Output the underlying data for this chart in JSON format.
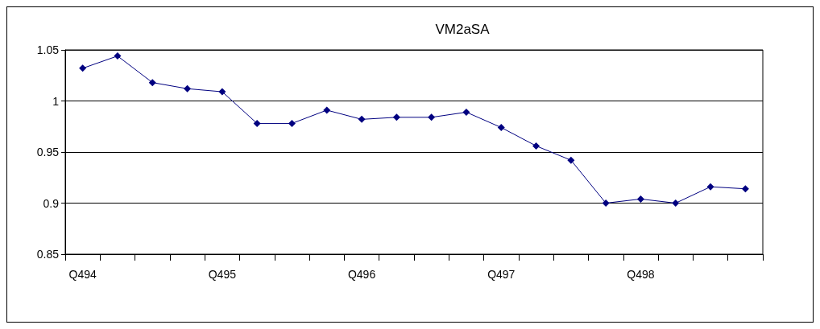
{
  "chart_data": {
    "type": "line",
    "title": "VM2aSA",
    "categories": [
      "Q494",
      null,
      null,
      null,
      "Q495",
      null,
      null,
      null,
      "Q496",
      null,
      null,
      null,
      "Q497",
      null,
      null,
      null,
      "Q498",
      null,
      null,
      null
    ],
    "series": [
      {
        "color": "#000080",
        "values": [
          1.032,
          1.044,
          1.018,
          1.012,
          1.009,
          0.978,
          0.978,
          0.991,
          0.982,
          0.984,
          0.984,
          0.989,
          0.974,
          0.956,
          0.942,
          0.9,
          0.904,
          0.9,
          0.916,
          0.914
        ]
      }
    ],
    "ylim": [
      0.85,
      1.05
    ],
    "yticks": [
      0.85,
      0.9,
      0.95,
      1,
      1.05
    ],
    "grid": "y",
    "marker": "diamond",
    "line_style": "solid"
  }
}
